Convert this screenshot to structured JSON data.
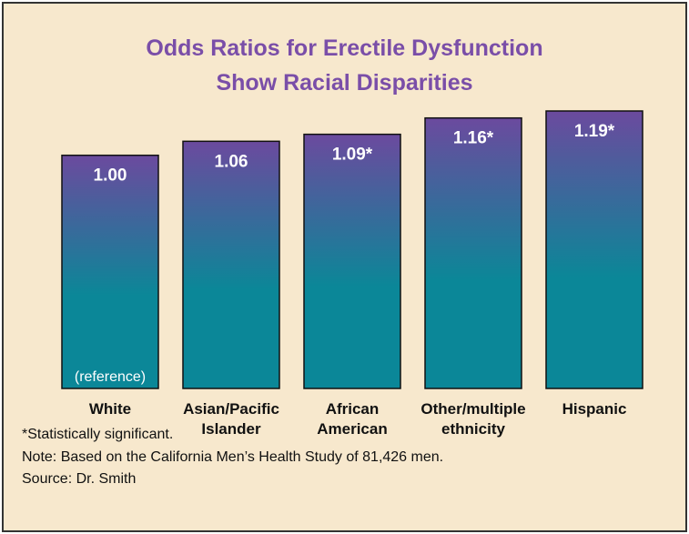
{
  "chart_data": {
    "type": "bar",
    "title": "Odds Ratios for Erectile Dysfunction Show Racial Disparities",
    "categories": [
      "White",
      "Asian/Pacific Islander",
      "African American",
      "Other/multiple ethnicity",
      "Hispanic"
    ],
    "values": [
      1.0,
      1.06,
      1.09,
      1.16,
      1.19
    ],
    "value_labels": [
      "1.00",
      "1.06",
      "1.09*",
      "1.16*",
      "1.19*"
    ],
    "annotation": "(reference)",
    "footnote": "*Statistically significant.",
    "note": "Note: Based on the California Men’s Health Study of 81,426 men.",
    "source": "Source: Dr. Smith",
    "color_top": "#6b4a9e",
    "color_bottom": "#0b8798"
  }
}
